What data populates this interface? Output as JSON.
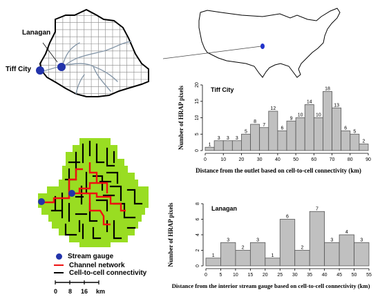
{
  "map_labels": {
    "lanagan": "Lanagan",
    "tiff_city": "Tiff City"
  },
  "legend": {
    "stream_gauge": "Stream gauge",
    "channel_network": "Channel network",
    "connectivity": "Cell-to-cell connectivity"
  },
  "scale_bar": {
    "ticks": [
      "0",
      "8",
      "16"
    ],
    "unit": "km"
  },
  "colors": {
    "bars": "#c0c0c0",
    "cells": "#99dd22",
    "channel": "#ee1111",
    "gauge": "#2233aa",
    "river": "#8899aa"
  },
  "chart_data": [
    {
      "type": "bar",
      "title": "Tiff City",
      "xlabel": "Distance from the outlet based on cell-to-cell connectivity (km)",
      "ylabel": "Number of HRAP pixels",
      "x_left_edges": [
        0,
        5,
        10,
        15,
        20,
        25,
        30,
        35,
        40,
        45,
        50,
        55,
        60,
        65,
        70,
        75,
        80,
        85
      ],
      "bin_width": 5,
      "values": [
        1,
        3,
        3,
        3,
        5,
        8,
        7,
        12,
        6,
        9,
        10,
        14,
        10,
        18,
        13,
        6,
        5,
        2
      ],
      "xlim": [
        0,
        90
      ],
      "ylim": [
        0,
        20
      ],
      "xticks": [
        0,
        10,
        20,
        30,
        40,
        50,
        60,
        70,
        80,
        90
      ],
      "yticks": [
        0,
        5,
        10,
        15,
        20
      ],
      "grid": false
    },
    {
      "type": "bar",
      "title": "Lanagan",
      "xlabel": "Distance from the interior stream gauge based on cell-to-cell connectivity (km)",
      "ylabel": "Number of HRAP pixels",
      "x_left_edges": [
        0,
        5,
        10,
        15,
        20,
        25,
        30,
        35,
        40,
        45,
        50
      ],
      "bin_width": 5,
      "values": [
        1,
        3,
        2,
        3,
        1,
        6,
        2,
        7,
        3,
        4,
        3
      ],
      "xlim": [
        0,
        55
      ],
      "ylim": [
        0,
        8
      ],
      "xticks": [
        0,
        5,
        10,
        15,
        20,
        25,
        30,
        35,
        40,
        45,
        50,
        55
      ],
      "yticks": [
        0,
        2,
        4,
        6,
        8
      ],
      "grid": false
    }
  ]
}
